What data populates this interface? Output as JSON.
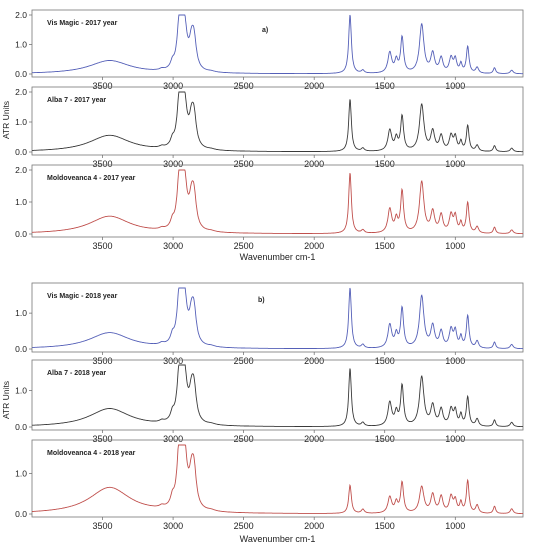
{
  "chart_data": {
    "type": "line",
    "x_reversed": true,
    "xlim": [
      4000,
      520
    ],
    "x_ticks": [
      "3500",
      "3000",
      "2500",
      "2000",
      "1500",
      "1000"
    ],
    "x_tick_values": [
      3500,
      3000,
      2500,
      2000,
      1500,
      1000
    ],
    "colors": {
      "black": "#3a3a3a",
      "blue": "#5560b8",
      "red": "#c0504d"
    },
    "peak_width_scale": 1.25,
    "groups": [
      {
        "panel_label": "a)",
        "xlabel": "Wavenumber cm-1",
        "ylabel": "ATR Units",
        "panels": [
          {
            "label": "Vis Magic - 2017 year",
            "yticks": [
              "0.0",
              "1.0",
              "2.0"
            ],
            "ylim": [
              0,
              2.0
            ],
            "color": "blue",
            "peaks": [
              [
                3450,
                0.45,
                140
              ],
              [
                3080,
                0.05,
                15
              ],
              [
                3005,
                0.2,
                12
              ],
              [
                2955,
                1.55,
                15
              ],
              [
                2922,
                1.62,
                18
              ],
              [
                2870,
                0.7,
                15
              ],
              [
                2852,
                0.95,
                16
              ],
              [
                2730,
                0.03,
                25
              ],
              [
                1746,
                2.0,
                9
              ],
              [
                1655,
                0.1,
                10
              ],
              [
                1464,
                0.7,
                13
              ],
              [
                1418,
                0.4,
                10
              ],
              [
                1377,
                1.2,
                10
              ],
              [
                1238,
                1.65,
                15
              ],
              [
                1160,
                0.65,
                13
              ],
              [
                1100,
                0.5,
                12
              ],
              [
                1030,
                0.5,
                12
              ],
              [
                1000,
                0.45,
                10
              ],
              [
                960,
                0.3,
                8
              ],
              [
                912,
                0.9,
                9
              ],
              [
                845,
                0.2,
                10
              ],
              [
                722,
                0.2,
                8
              ],
              [
                600,
                0.12,
                10
              ]
            ]
          },
          {
            "label": "Alba 7 - 2017 year",
            "yticks": [
              "0.0",
              "1.0",
              "2.0"
            ],
            "ylim": [
              0,
              2.0
            ],
            "color": "black",
            "peaks": [
              [
                3450,
                0.55,
                140
              ],
              [
                3080,
                0.05,
                15
              ],
              [
                3005,
                0.2,
                12
              ],
              [
                2955,
                1.55,
                15
              ],
              [
                2922,
                1.62,
                18
              ],
              [
                2870,
                0.7,
                15
              ],
              [
                2852,
                0.95,
                16
              ],
              [
                2730,
                0.03,
                25
              ],
              [
                1746,
                1.75,
                9
              ],
              [
                1655,
                0.1,
                10
              ],
              [
                1464,
                0.7,
                13
              ],
              [
                1418,
                0.4,
                10
              ],
              [
                1377,
                1.15,
                10
              ],
              [
                1238,
                1.55,
                15
              ],
              [
                1160,
                0.65,
                13
              ],
              [
                1100,
                0.5,
                12
              ],
              [
                1030,
                0.5,
                12
              ],
              [
                1000,
                0.45,
                10
              ],
              [
                960,
                0.3,
                8
              ],
              [
                912,
                0.85,
                9
              ],
              [
                845,
                0.2,
                10
              ],
              [
                722,
                0.2,
                8
              ],
              [
                600,
                0.12,
                10
              ]
            ]
          },
          {
            "label": "Moldoveanca 4 - 2017 year",
            "yticks": [
              "0.0",
              "1.0",
              "2.0"
            ],
            "ylim": [
              0,
              2.0
            ],
            "color": "red",
            "peaks": [
              [
                3450,
                0.55,
                140
              ],
              [
                3080,
                0.05,
                15
              ],
              [
                3005,
                0.2,
                12
              ],
              [
                2955,
                1.55,
                15
              ],
              [
                2922,
                1.62,
                18
              ],
              [
                2870,
                0.7,
                15
              ],
              [
                2852,
                0.95,
                16
              ],
              [
                2730,
                0.03,
                25
              ],
              [
                1746,
                1.9,
                9
              ],
              [
                1655,
                0.1,
                10
              ],
              [
                1464,
                0.75,
                13
              ],
              [
                1418,
                0.4,
                10
              ],
              [
                1377,
                1.3,
                10
              ],
              [
                1238,
                1.6,
                15
              ],
              [
                1160,
                0.65,
                13
              ],
              [
                1100,
                0.55,
                12
              ],
              [
                1030,
                0.55,
                12
              ],
              [
                1000,
                0.5,
                10
              ],
              [
                960,
                0.3,
                8
              ],
              [
                912,
                0.95,
                9
              ],
              [
                845,
                0.2,
                10
              ],
              [
                722,
                0.2,
                8
              ],
              [
                600,
                0.12,
                10
              ]
            ]
          }
        ]
      },
      {
        "panel_label": "b)",
        "xlabel": "Wavenumber cm-1",
        "ylabel": "ATR Units",
        "panels": [
          {
            "label": "Vis Magic - 2018 year",
            "yticks": [
              "0.0",
              "1.0"
            ],
            "ylim": [
              0,
              1.7
            ],
            "color": "blue",
            "peaks": [
              [
                3450,
                0.45,
                140
              ],
              [
                3080,
                0.05,
                15
              ],
              [
                3005,
                0.2,
                12
              ],
              [
                2955,
                1.35,
                15
              ],
              [
                2922,
                1.4,
                18
              ],
              [
                2870,
                0.6,
                15
              ],
              [
                2852,
                0.85,
                16
              ],
              [
                2730,
                0.03,
                25
              ],
              [
                1746,
                1.7,
                9
              ],
              [
                1655,
                0.1,
                10
              ],
              [
                1464,
                0.65,
                13
              ],
              [
                1418,
                0.35,
                10
              ],
              [
                1377,
                1.1,
                10
              ],
              [
                1238,
                1.45,
                15
              ],
              [
                1160,
                0.6,
                13
              ],
              [
                1100,
                0.45,
                12
              ],
              [
                1030,
                0.5,
                12
              ],
              [
                1000,
                0.45,
                10
              ],
              [
                960,
                0.3,
                8
              ],
              [
                912,
                0.9,
                9
              ],
              [
                845,
                0.2,
                10
              ],
              [
                722,
                0.18,
                8
              ],
              [
                600,
                0.12,
                10
              ]
            ]
          },
          {
            "label": "Alba 7 - 2018 year",
            "yticks": [
              "0.0",
              "1.0"
            ],
            "ylim": [
              0,
              1.7
            ],
            "color": "black",
            "peaks": [
              [
                3450,
                0.5,
                140
              ],
              [
                3080,
                0.05,
                15
              ],
              [
                3005,
                0.2,
                12
              ],
              [
                2955,
                1.35,
                15
              ],
              [
                2922,
                1.4,
                18
              ],
              [
                2870,
                0.6,
                15
              ],
              [
                2852,
                0.85,
                16
              ],
              [
                2730,
                0.03,
                25
              ],
              [
                1746,
                1.6,
                9
              ],
              [
                1655,
                0.1,
                10
              ],
              [
                1464,
                0.65,
                13
              ],
              [
                1418,
                0.35,
                10
              ],
              [
                1377,
                1.1,
                10
              ],
              [
                1238,
                1.35,
                15
              ],
              [
                1160,
                0.55,
                13
              ],
              [
                1100,
                0.45,
                12
              ],
              [
                1030,
                0.45,
                12
              ],
              [
                1000,
                0.4,
                10
              ],
              [
                960,
                0.3,
                8
              ],
              [
                912,
                0.8,
                9
              ],
              [
                845,
                0.2,
                10
              ],
              [
                722,
                0.18,
                8
              ],
              [
                600,
                0.12,
                10
              ]
            ]
          },
          {
            "label": "Moldoveanca 4 - 2018 year",
            "yticks": [
              "0.0",
              "1.0"
            ],
            "ylim": [
              0,
              1.7
            ],
            "color": "red",
            "peaks": [
              [
                3450,
                0.65,
                140
              ],
              [
                3080,
                0.05,
                15
              ],
              [
                3005,
                0.2,
                12
              ],
              [
                2955,
                1.45,
                15
              ],
              [
                2922,
                1.5,
                18
              ],
              [
                2870,
                0.6,
                15
              ],
              [
                2852,
                0.85,
                16
              ],
              [
                2730,
                0.03,
                25
              ],
              [
                1746,
                0.7,
                9
              ],
              [
                1655,
                0.1,
                10
              ],
              [
                1464,
                0.4,
                13
              ],
              [
                1418,
                0.25,
                10
              ],
              [
                1377,
                0.75,
                10
              ],
              [
                1238,
                0.65,
                15
              ],
              [
                1160,
                0.45,
                13
              ],
              [
                1100,
                0.4,
                12
              ],
              [
                1030,
                0.4,
                12
              ],
              [
                1000,
                0.3,
                10
              ],
              [
                960,
                0.25,
                8
              ],
              [
                912,
                0.8,
                9
              ],
              [
                845,
                0.2,
                10
              ],
              [
                722,
                0.18,
                8
              ],
              [
                600,
                0.12,
                10
              ]
            ]
          }
        ]
      }
    ]
  }
}
